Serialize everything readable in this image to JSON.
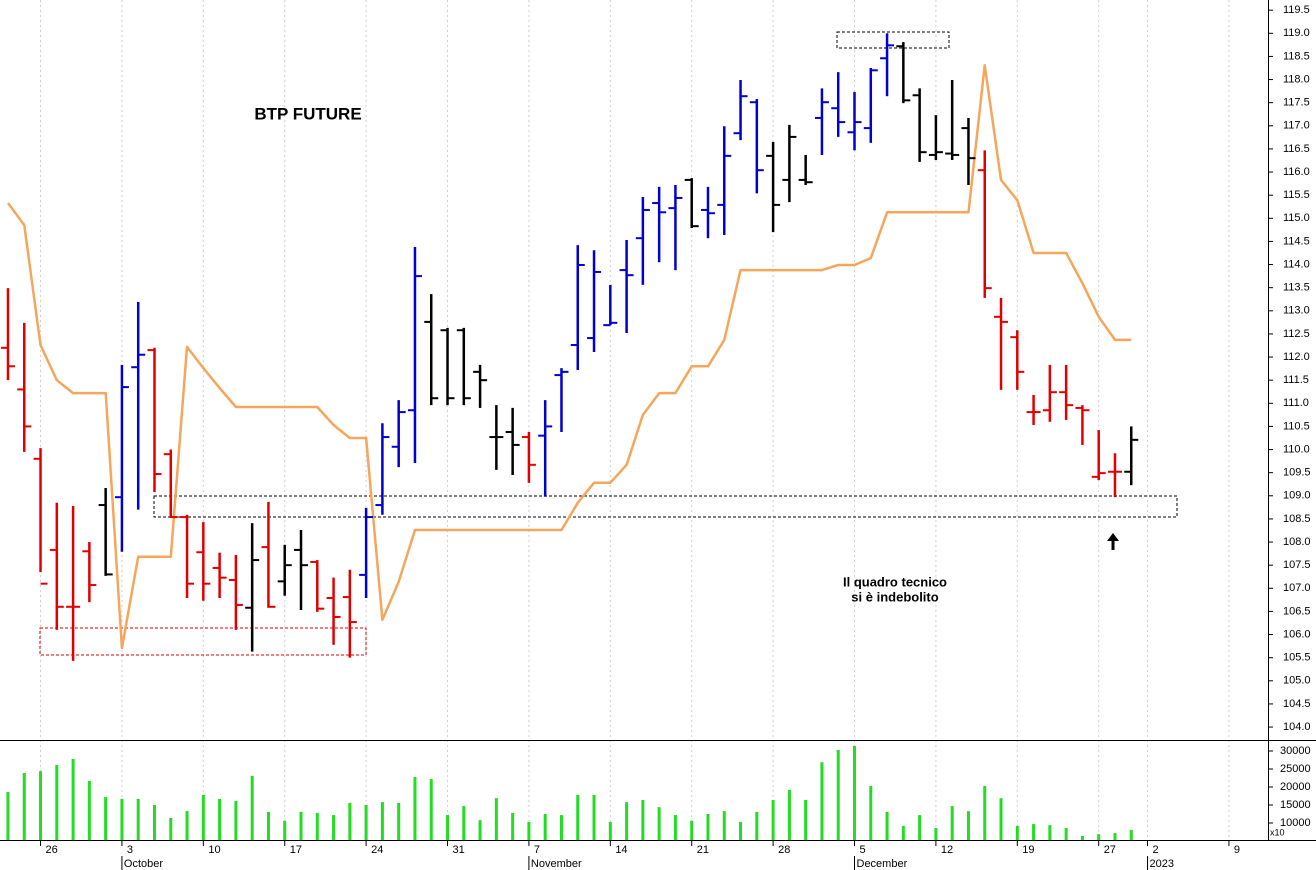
{
  "chart_data": {
    "type": "ohlc",
    "title": "BTP FUTURE",
    "annotation_lines": [
      "Il quadro tecnico",
      "si è indebolito"
    ],
    "annotation_color": "#e00000",
    "xlim": [
      -0.49,
      77.4
    ],
    "xticks": [
      {
        "value": 2,
        "label": "26"
      },
      {
        "value": 7,
        "label": "3"
      },
      {
        "value": 12,
        "label": "10"
      },
      {
        "value": 17,
        "label": "17"
      },
      {
        "value": 22,
        "label": "24"
      },
      {
        "value": 27,
        "label": "31"
      },
      {
        "value": 32,
        "label": "7"
      },
      {
        "value": 37,
        "label": "14"
      },
      {
        "value": 42,
        "label": "21"
      },
      {
        "value": 47,
        "label": "28"
      },
      {
        "value": 52,
        "label": "5"
      },
      {
        "value": 57,
        "label": "12"
      },
      {
        "value": 62,
        "label": "19"
      },
      {
        "value": 67,
        "label": "27"
      },
      {
        "value": 70,
        "label": "2"
      },
      {
        "value": 75,
        "label": "9"
      }
    ],
    "month_ticks": [
      {
        "value": 7,
        "label": "October"
      },
      {
        "value": 32,
        "label": "November"
      },
      {
        "value": 52,
        "label": "December"
      },
      {
        "value": 70,
        "label": "2023"
      }
    ],
    "grid": true,
    "ylim": [
      103.72,
      119.72
    ],
    "yticks": [
      {
        "value": 104,
        "label": "104.0"
      },
      104.5,
      {
        "value": 105,
        "label": "105.0"
      },
      105.5,
      {
        "value": 106,
        "label": "106.0"
      },
      106.5,
      {
        "value": 107,
        "label": "107.0"
      },
      107.5,
      {
        "value": 108,
        "label": "108.0"
      },
      108.5,
      {
        "value": 109,
        "label": "109.0"
      },
      109.5,
      {
        "value": 110,
        "label": "110.0"
      },
      110.5,
      {
        "value": 111,
        "label": "111.0"
      },
      111.5,
      {
        "value": 112,
        "label": "112.0"
      },
      112.5,
      {
        "value": 113,
        "label": "113.0"
      },
      113.5,
      {
        "value": 114,
        "label": "114.0"
      },
      114.5,
      {
        "value": 115,
        "label": "115.0"
      },
      115.5,
      {
        "value": 116,
        "label": "116.0"
      },
      116.5,
      {
        "value": 117,
        "label": "117.0"
      },
      117.5,
      {
        "value": 118,
        "label": "118.0"
      },
      118.5,
      {
        "value": 119,
        "label": "119.0"
      },
      119.5
    ],
    "ohlc": {
      "open": [
        112.2,
        111.3,
        109.8,
        107.83,
        106.6,
        107.8,
        108.8,
        108.97,
        111.78,
        112.15,
        109.9,
        108.54,
        107.78,
        107.44,
        107.18,
        106.58,
        107.89,
        107.15,
        107.83,
        107.57,
        106.79,
        106.81,
        107.29,
        108.8,
        110.06,
        110.85,
        112.76,
        112.58,
        112.58,
        111.68,
        110.27,
        110.38,
        110.27,
        110.3,
        111.61,
        112.26,
        112.41,
        112.69,
        113.88,
        114.57,
        115.33,
        115.22,
        115.83,
        115.18,
        115.29,
        116.84,
        117.51,
        116.35,
        115.83,
        115.83,
        117.17,
        117.38,
        116.86,
        116.95,
        118.46,
        118.72,
        117.66,
        116.37,
        116.4,
        116.95,
        116.04,
        112.87,
        112.43,
        110.81,
        110.85,
        111.24,
        110.9,
        109.41,
        109.52,
        109.52
      ],
      "high": [
        113.49,
        112.74,
        110.03,
        108.85,
        108.78,
        108.0,
        109.17,
        111.83,
        113.19,
        112.2,
        110.0,
        108.59,
        108.43,
        107.77,
        107.72,
        108.41,
        108.87,
        107.94,
        108.26,
        107.61,
        107.23,
        107.4,
        108.74,
        110.57,
        111.07,
        114.38,
        113.36,
        112.63,
        112.63,
        111.83,
        110.96,
        110.9,
        110.38,
        111.07,
        111.76,
        114.42,
        114.31,
        113.56,
        114.53,
        115.46,
        115.68,
        115.72,
        115.87,
        115.68,
        116.99,
        117.99,
        117.58,
        116.65,
        117.02,
        116.37,
        117.81,
        118.16,
        117.73,
        118.25,
        119.0,
        118.81,
        117.81,
        117.23,
        117.99,
        117.17,
        116.47,
        113.28,
        112.58,
        111.18,
        111.83,
        111.83,
        110.96,
        110.42,
        109.92,
        110.5
      ],
      "low": [
        111.5,
        109.95,
        107.35,
        106.1,
        105.43,
        106.7,
        107.27,
        107.79,
        108.7,
        109.08,
        108.52,
        106.79,
        106.73,
        106.79,
        106.1,
        105.63,
        106.58,
        106.84,
        106.53,
        106.49,
        105.78,
        105.5,
        106.79,
        108.59,
        109.62,
        109.71,
        110.96,
        110.96,
        110.96,
        110.9,
        109.56,
        109.45,
        109.28,
        108.98,
        110.38,
        111.72,
        112.11,
        112.69,
        112.52,
        113.56,
        114.05,
        113.88,
        114.79,
        114.57,
        114.64,
        116.69,
        115.54,
        114.7,
        115.35,
        115.72,
        116.37,
        116.76,
        116.47,
        116.63,
        117.64,
        117.49,
        116.22,
        116.26,
        116.26,
        115.72,
        113.28,
        111.29,
        111.29,
        110.53,
        110.6,
        110.64,
        110.1,
        109.34,
        108.97,
        109.23
      ],
      "close": [
        111.8,
        110.5,
        107.1,
        106.6,
        106.6,
        107.07,
        107.3,
        111.35,
        112.05,
        109.47,
        108.54,
        107.1,
        107.1,
        107.23,
        106.64,
        107.61,
        106.6,
        107.5,
        107.5,
        106.56,
        106.38,
        106.27,
        108.54,
        110.27,
        110.81,
        113.75,
        111.11,
        111.11,
        111.11,
        111.5,
        110.27,
        110.1,
        109.67,
        110.5,
        111.68,
        113.99,
        113.84,
        112.74,
        113.77,
        115.18,
        115.13,
        115.44,
        114.83,
        115.11,
        116.35,
        117.64,
        116.04,
        115.29,
        116.76,
        115.78,
        117.51,
        117.08,
        117.08,
        118.2,
        118.74,
        117.55,
        116.43,
        116.43,
        116.37,
        116.3,
        113.49,
        112.76,
        111.68,
        110.81,
        111.24,
        110.96,
        110.85,
        109.49,
        109.52,
        110.21
      ],
      "colors": [
        "#e00000",
        "#e00000",
        "#e00000",
        "#e00000",
        "#e00000",
        "#e00000",
        "#000000",
        "#0000d0",
        "#0000d0",
        "#e00000",
        "#e00000",
        "#e00000",
        "#e00000",
        "#e00000",
        "#e00000",
        "#000000",
        "#e00000",
        "#000000",
        "#000000",
        "#e00000",
        "#e00000",
        "#e00000",
        "#0000d0",
        "#0000d0",
        "#0000d0",
        "#0000d0",
        "#000000",
        "#000000",
        "#000000",
        "#000000",
        "#000000",
        "#000000",
        "#e00000",
        "#0000d0",
        "#0000d0",
        "#0000d0",
        "#0000d0",
        "#0000d0",
        "#0000d0",
        "#0000d0",
        "#0000d0",
        "#0000d0",
        "#000000",
        "#0000d0",
        "#0000d0",
        "#0000d0",
        "#0000d0",
        "#000000",
        "#000000",
        "#000000",
        "#0000d0",
        "#0000d0",
        "#0000d0",
        "#0000d0",
        "#0000d0",
        "#000000",
        "#000000",
        "#000000",
        "#000000",
        "#000000",
        "#e00000",
        "#e00000",
        "#e00000",
        "#e00000",
        "#e00000",
        "#e00000",
        "#e00000",
        "#e00000",
        "#e00000",
        "#000000"
      ]
    },
    "overlay": {
      "color": "#f5a65b",
      "values": [
        115.33,
        114.85,
        112.26,
        111.5,
        111.22,
        111.22,
        111.22,
        105.71,
        107.68,
        107.68,
        107.68,
        112.22,
        111.76,
        111.33,
        110.92,
        110.92,
        110.92,
        110.92,
        110.92,
        110.92,
        110.53,
        110.25,
        110.25,
        106.32,
        107.14,
        108.26,
        108.26,
        108.26,
        108.26,
        108.26,
        108.26,
        108.26,
        108.26,
        108.26,
        108.26,
        108.85,
        109.28,
        109.28,
        109.67,
        110.75,
        111.22,
        111.22,
        111.8,
        111.8,
        112.37,
        113.88,
        113.88,
        113.88,
        113.88,
        113.88,
        113.88,
        113.99,
        113.99,
        114.14,
        115.13,
        115.13,
        115.13,
        115.13,
        115.13,
        115.13,
        118.31,
        115.83,
        115.39,
        114.25,
        114.25,
        114.25,
        113.6,
        112.87,
        112.37,
        112.37
      ]
    },
    "volume": {
      "color": "#22dd22",
      "ylim": [
        5280,
        32780
      ],
      "yticks": [
        10000,
        15000,
        20000,
        25000,
        30000
      ],
      "unit_label": "x10",
      "values": [
        18600,
        23900,
        24400,
        26100,
        27800,
        21700,
        17200,
        16700,
        16700,
        15000,
        11400,
        13300,
        17800,
        16700,
        16100,
        23100,
        13100,
        10600,
        13100,
        12800,
        12200,
        15600,
        15000,
        15800,
        15600,
        22800,
        22200,
        12200,
        14700,
        10800,
        16900,
        12800,
        10300,
        12500,
        12200,
        17800,
        17800,
        10300,
        15800,
        16400,
        14400,
        12200,
        10600,
        12500,
        13300,
        10300,
        13100,
        16400,
        19200,
        16400,
        26900,
        30300,
        31400,
        20300,
        13100,
        9200,
        12200,
        8600,
        14700,
        13300,
        20300,
        16900,
        9200,
        9700,
        9400,
        8600,
        6400,
        6900,
        7200,
        8100
      ]
    }
  }
}
